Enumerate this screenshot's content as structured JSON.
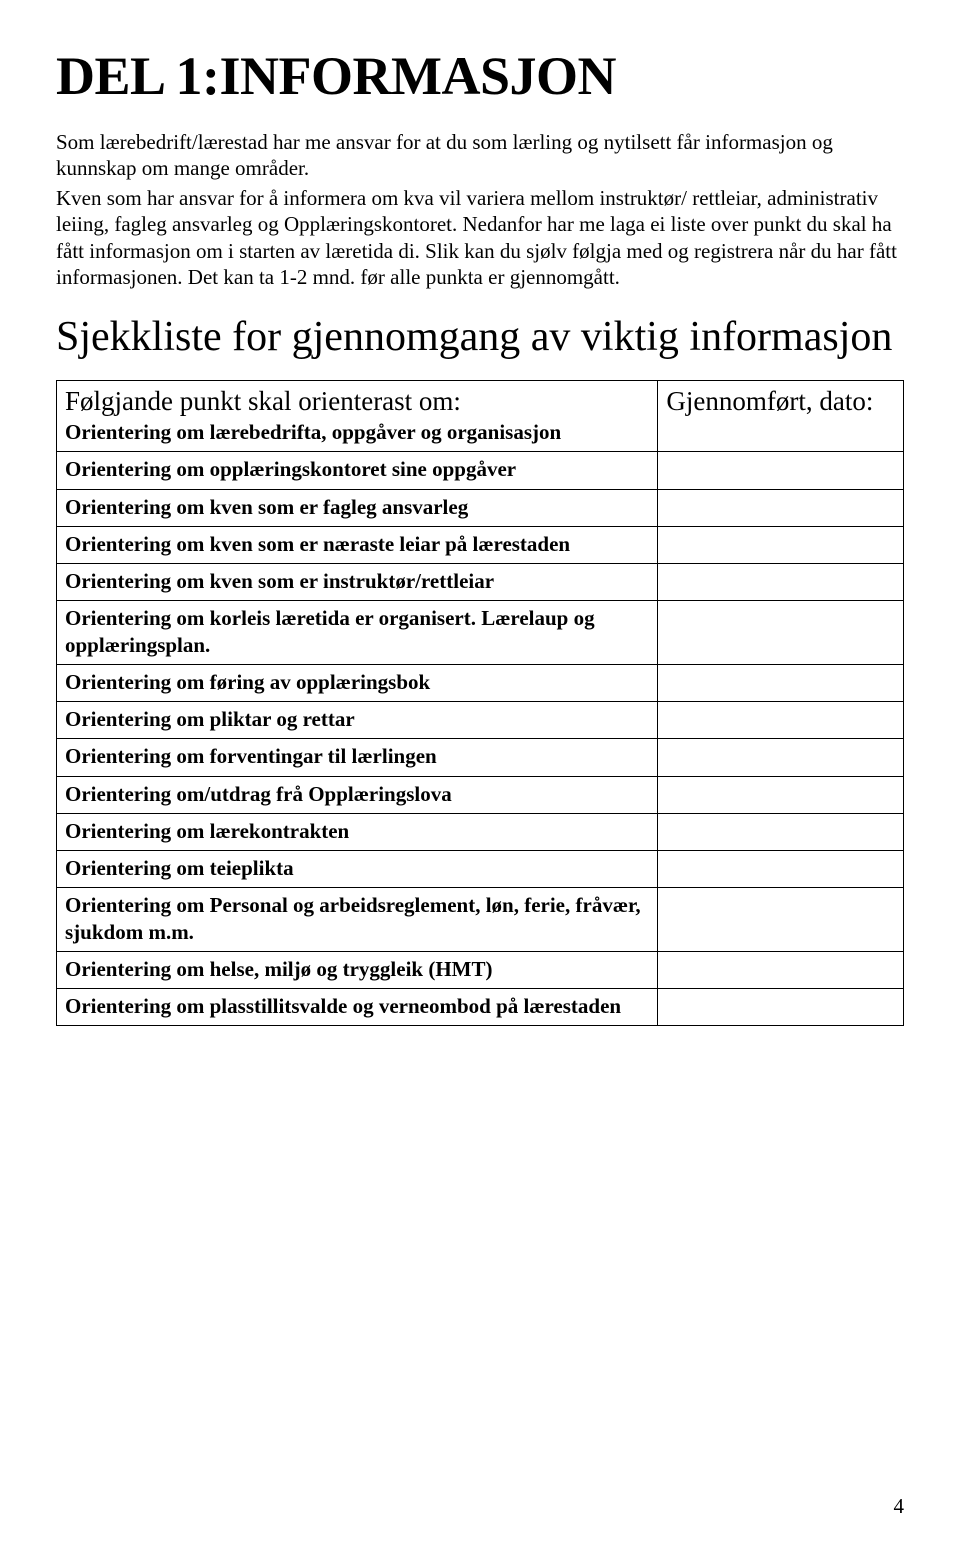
{
  "heading1": "DEL 1:INFORMASJON",
  "para1": "Som lærebedrift/lærestad har me ansvar for at du som lærling og nytilsett får informasjon og kunnskap om mange områder.",
  "para2": "Kven som har ansvar for å informera om kva vil variera mellom instruktør/ rettleiar, administrativ leiing, fagleg ansvarleg og Opplæringskontoret. Nedanfor har me laga ei liste over punkt du skal ha fått informasjon om i starten av læretida di. Slik kan du sjølv følgja med og registrera når du har fått informasjonen. Det kan ta 1-2 mnd. før alle punkta er gjennomgått.",
  "heading2": "Sjekkliste for gjennomgang av viktig informasjon",
  "table": {
    "header_left": "Følgjande punkt skal orienterast om:",
    "header_right": "Gjennomført, dato:",
    "subheader_left": "Orientering om lærebedrifta, oppgåver og organisasjon",
    "rows": [
      "Orientering om opplæringskontoret sine oppgåver",
      "Orientering om kven som er fagleg ansvarleg",
      "Orientering om kven som er næraste leiar på lærestaden",
      "Orientering om kven som er instruktør/rettleiar",
      "Orientering om korleis læretida er organisert. Lærelaup og opplæringsplan.",
      "Orientering om føring av opplæringsbok",
      "Orientering om pliktar og rettar",
      "Orientering om forventingar til lærlingen",
      "Orientering om/utdrag frå Opplæringslova",
      "Orientering om lærekontrakten",
      "Orientering om teieplikta",
      "Orientering om Personal og arbeidsreglement, løn, ferie, fråvær, sjukdom m.m.",
      "Orientering om  helse, miljø og tryggleik (HMT)",
      "Orientering om plasstillitsvalde og verneombod på lærestaden"
    ]
  },
  "page_number": "4"
}
